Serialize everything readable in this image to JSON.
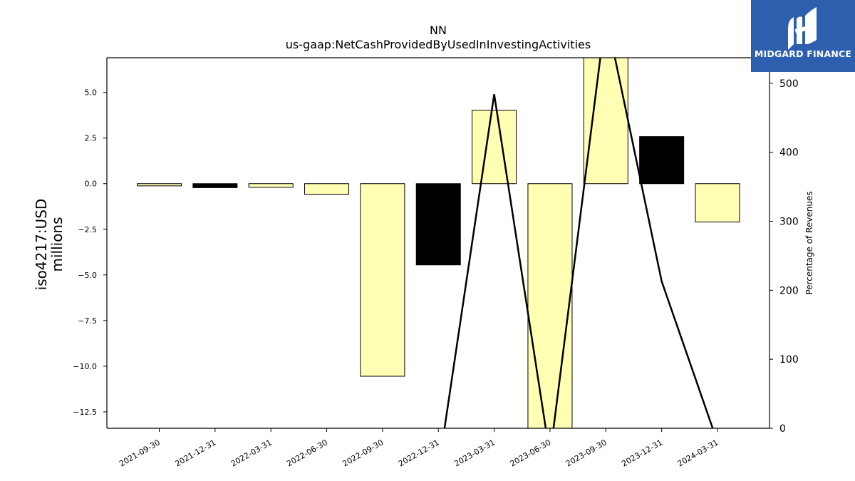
{
  "chart_data": {
    "type": "bar",
    "title": "NN",
    "subtitle": "us-gaap:NetCashProvidedByUsedInInvestingActivities",
    "ylabel": "iso4217:USD\nmillions",
    "ylabel_lines": [
      "iso4217:USD",
      "millions"
    ],
    "y2label": "Percentage of Revenues",
    "categories": [
      "2021-09-30",
      "2021-12-31",
      "2022-03-31",
      "2022-06-30",
      "2022-09-30",
      "2022-12-31",
      "2023-03-31",
      "2023-06-30",
      "2023-09-30",
      "2023-12-31",
      "2024-03-31"
    ],
    "values": [
      -0.12,
      -0.22,
      -0.2,
      -0.58,
      -10.55,
      -4.45,
      4.02,
      -13.9,
      7.2,
      2.58,
      -2.1
    ],
    "bar_colors": [
      "#ffffb3",
      "#000000",
      "#ffffb3",
      "#ffffb3",
      "#ffffb3",
      "#000000",
      "#ffffb3",
      "#ffffb3",
      "#ffffb3",
      "#000000",
      "#ffffb3"
    ],
    "ylim": [
      -13.4,
      6.9
    ],
    "yticks": [
      5.0,
      2.5,
      0.0,
      -2.5,
      -5.0,
      -7.5,
      -10.0,
      -12.5
    ],
    "ytick_labels": [
      "5.0",
      "2.5",
      "0.0",
      "−2.5",
      "−5.0",
      "−7.5",
      "−10.0",
      "−12.5"
    ],
    "line_series": {
      "axis": "right",
      "color": "#000000",
      "values": [
        null,
        null,
        null,
        null,
        null,
        -60,
        484,
        -40,
        600,
        213,
        -20
      ]
    },
    "y2lim": [
      0,
      537
    ],
    "y2ticks": [
      0,
      100,
      200,
      300,
      400,
      500
    ],
    "grid": false
  },
  "logo": {
    "text": "MIDGARD FINANCE"
  }
}
